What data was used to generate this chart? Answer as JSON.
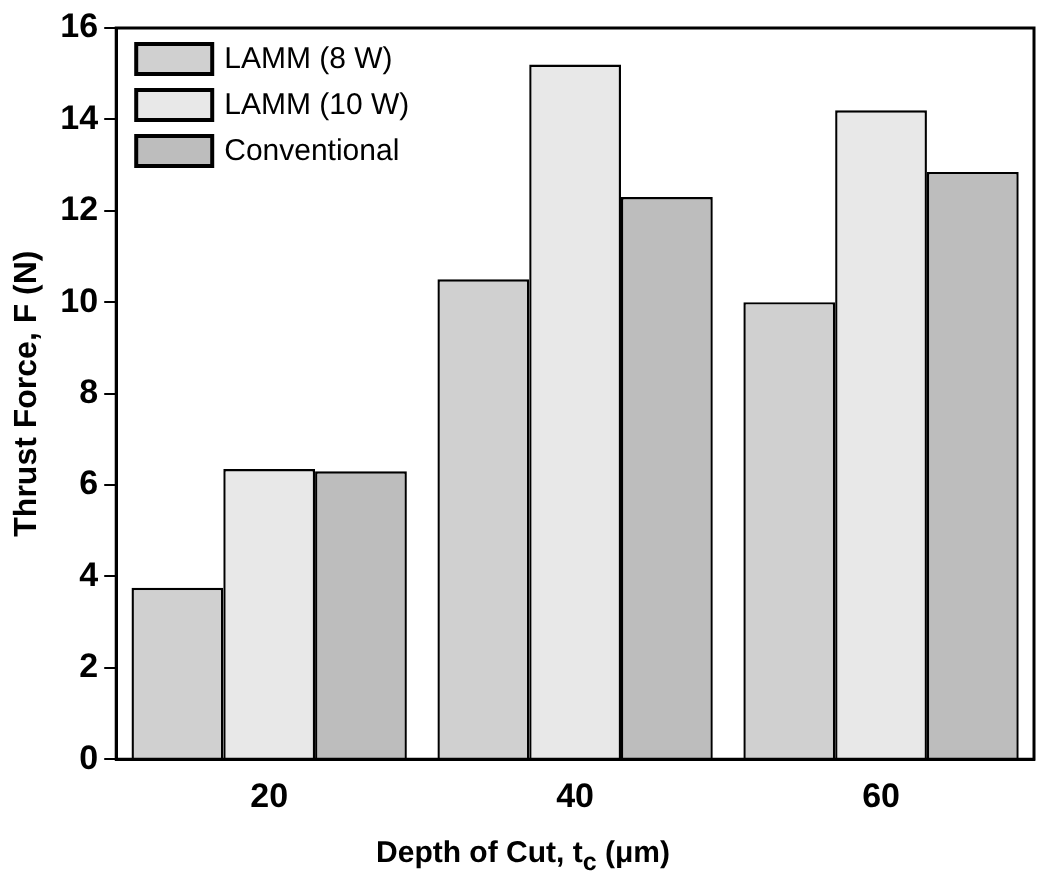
{
  "chart_data": {
    "type": "bar",
    "xlabel": "Depth of Cut, t$_{c}$ (μm)",
    "ylabel": "Thrust Force, F (N)",
    "categories": [
      "20",
      "40",
      "60"
    ],
    "series": [
      {
        "name": "LAMM (8 W)",
        "color": "#d0d0d0",
        "values": [
          3.75,
          10.5,
          10.0
        ]
      },
      {
        "name": "LAMM (10 W)",
        "color": "#e8e8e8",
        "values": [
          6.35,
          15.2,
          14.2
        ]
      },
      {
        "name": "Conventional",
        "color": "#bdbdbd",
        "values": [
          6.3,
          12.3,
          12.85
        ]
      }
    ],
    "ylim": [
      0,
      16
    ],
    "yticks": [
      0,
      2,
      4,
      6,
      8,
      10,
      12,
      14,
      16
    ],
    "legend": "top left",
    "grid": false
  }
}
